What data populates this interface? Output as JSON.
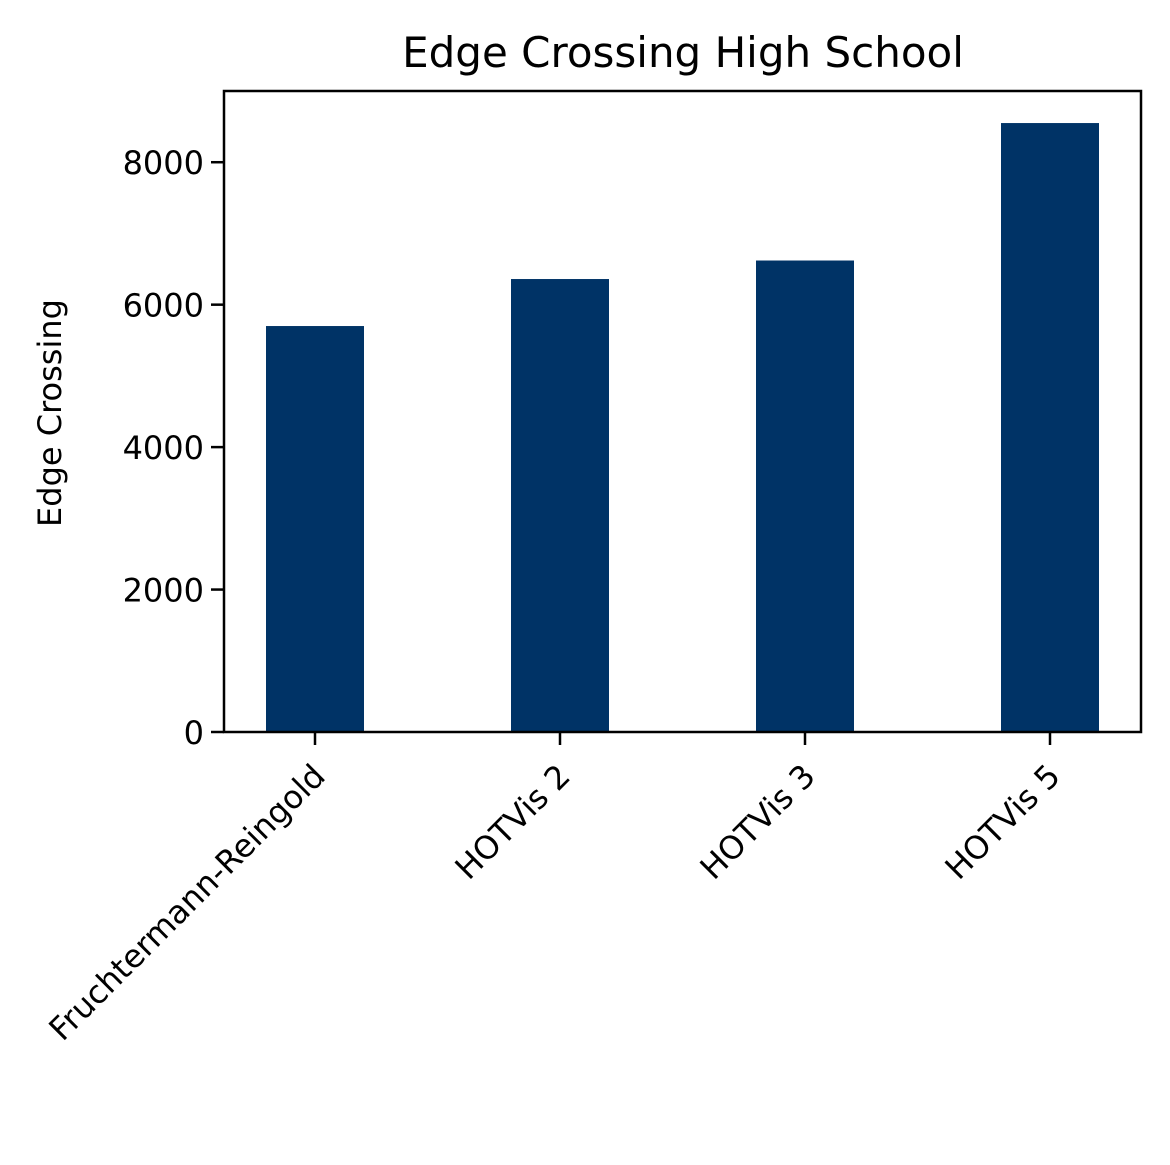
{
  "chart_data": {
    "type": "bar",
    "title": "Edge Crossing High School",
    "xlabel": "",
    "ylabel": "Edge Crossing",
    "categories": [
      "Fruchtermann-Reingold",
      "HOTVis 2",
      "HOTVis 3",
      "HOTVis 5"
    ],
    "values": [
      5700,
      6360,
      6620,
      8550
    ],
    "ylim": [
      0,
      9000
    ],
    "yticks": [
      0,
      2000,
      4000,
      6000,
      8000
    ],
    "ytick_labels": [
      "0",
      "2000",
      "4000",
      "6000",
      "8000"
    ],
    "bar_color": "#003366",
    "grid": false,
    "legend": null
  }
}
